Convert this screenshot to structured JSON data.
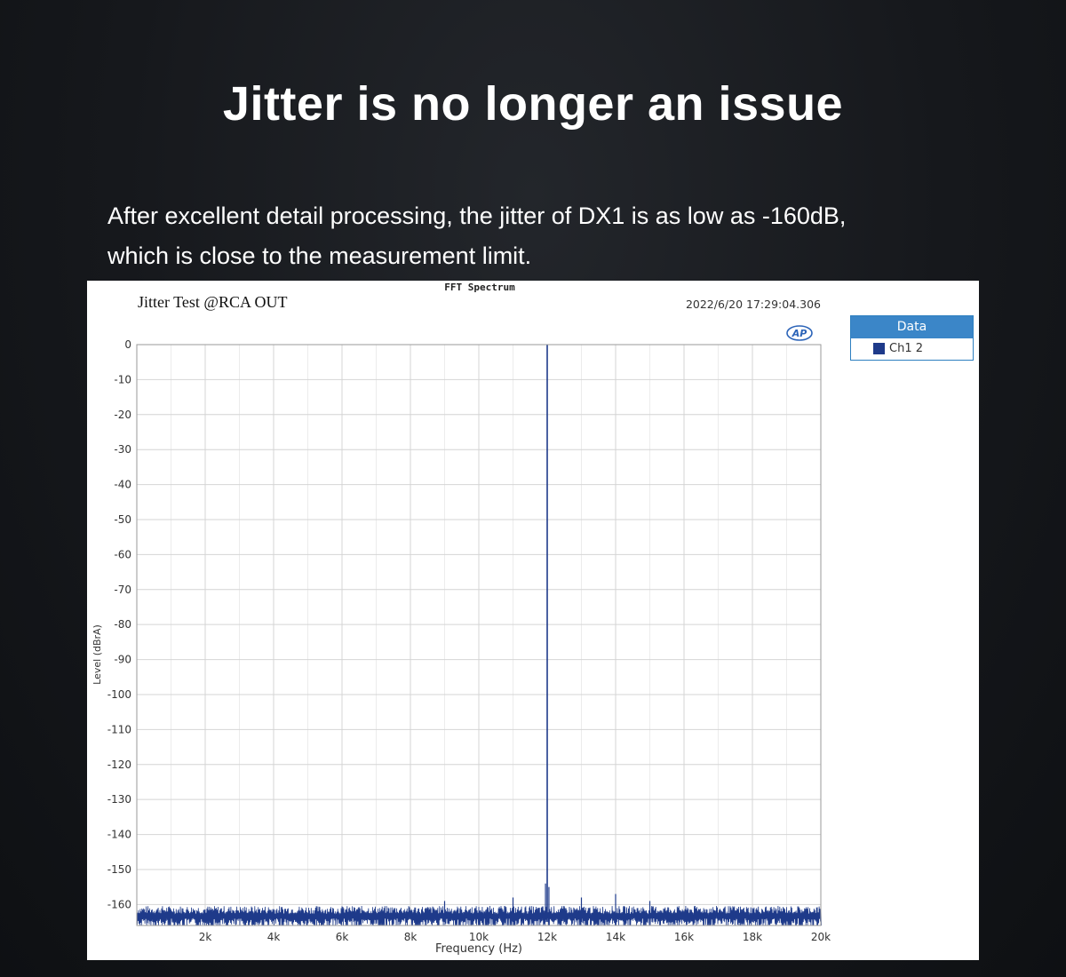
{
  "page": {
    "headline": "Jitter is no longer an issue",
    "description_line1": "After excellent detail processing, the jitter of DX1 is as low as -160dB,",
    "description_line2": "which is close to the measurement limit."
  },
  "colors": {
    "background": "#16181c",
    "trace": "#1e3a8a",
    "legend_header": "#3b86c8",
    "grid": "#d4d4d4"
  },
  "chart_data": {
    "type": "line",
    "title": "FFT Spectrum",
    "subtitle": "Jitter Test @RCA OUT",
    "timestamp": "2022/6/20 17:29:04.306",
    "logo": "AP",
    "xlabel": "Frequency (Hz)",
    "ylabel": "Level (dBrA)",
    "xlim": [
      0,
      20000
    ],
    "ylim": [
      -166,
      0
    ],
    "x_ticks": [
      2000,
      4000,
      6000,
      8000,
      10000,
      12000,
      14000,
      16000,
      18000,
      20000
    ],
    "x_tick_labels": [
      "2k",
      "4k",
      "6k",
      "8k",
      "10k",
      "12k",
      "14k",
      "16k",
      "18k",
      "20k"
    ],
    "y_ticks": [
      0,
      -10,
      -20,
      -30,
      -40,
      -50,
      -60,
      -70,
      -80,
      -90,
      -100,
      -110,
      -120,
      -130,
      -140,
      -150,
      -160
    ],
    "y_tick_labels": [
      "0",
      "-10",
      "-20",
      "-30",
      "-40",
      "-50",
      "-60",
      "-70",
      "-80",
      "-90",
      "-100",
      "-110",
      "-120",
      "-130",
      "-140",
      "-150",
      "-160"
    ],
    "grid": true,
    "legend": {
      "title": "Data",
      "position": "outside-right",
      "entries": [
        "Ch1 2"
      ]
    },
    "series": [
      {
        "name": "Ch1 2",
        "noise_floor": -162,
        "peak": {
          "x": 12000,
          "y": 0
        },
        "sidebands": [
          {
            "x": 11950,
            "y": -154
          },
          {
            "x": 12050,
            "y": -155
          },
          {
            "x": 11000,
            "y": -158
          },
          {
            "x": 13000,
            "y": -158
          },
          {
            "x": 14000,
            "y": -157
          },
          {
            "x": 15000,
            "y": -159
          },
          {
            "x": 9000,
            "y": -159
          }
        ]
      }
    ]
  }
}
